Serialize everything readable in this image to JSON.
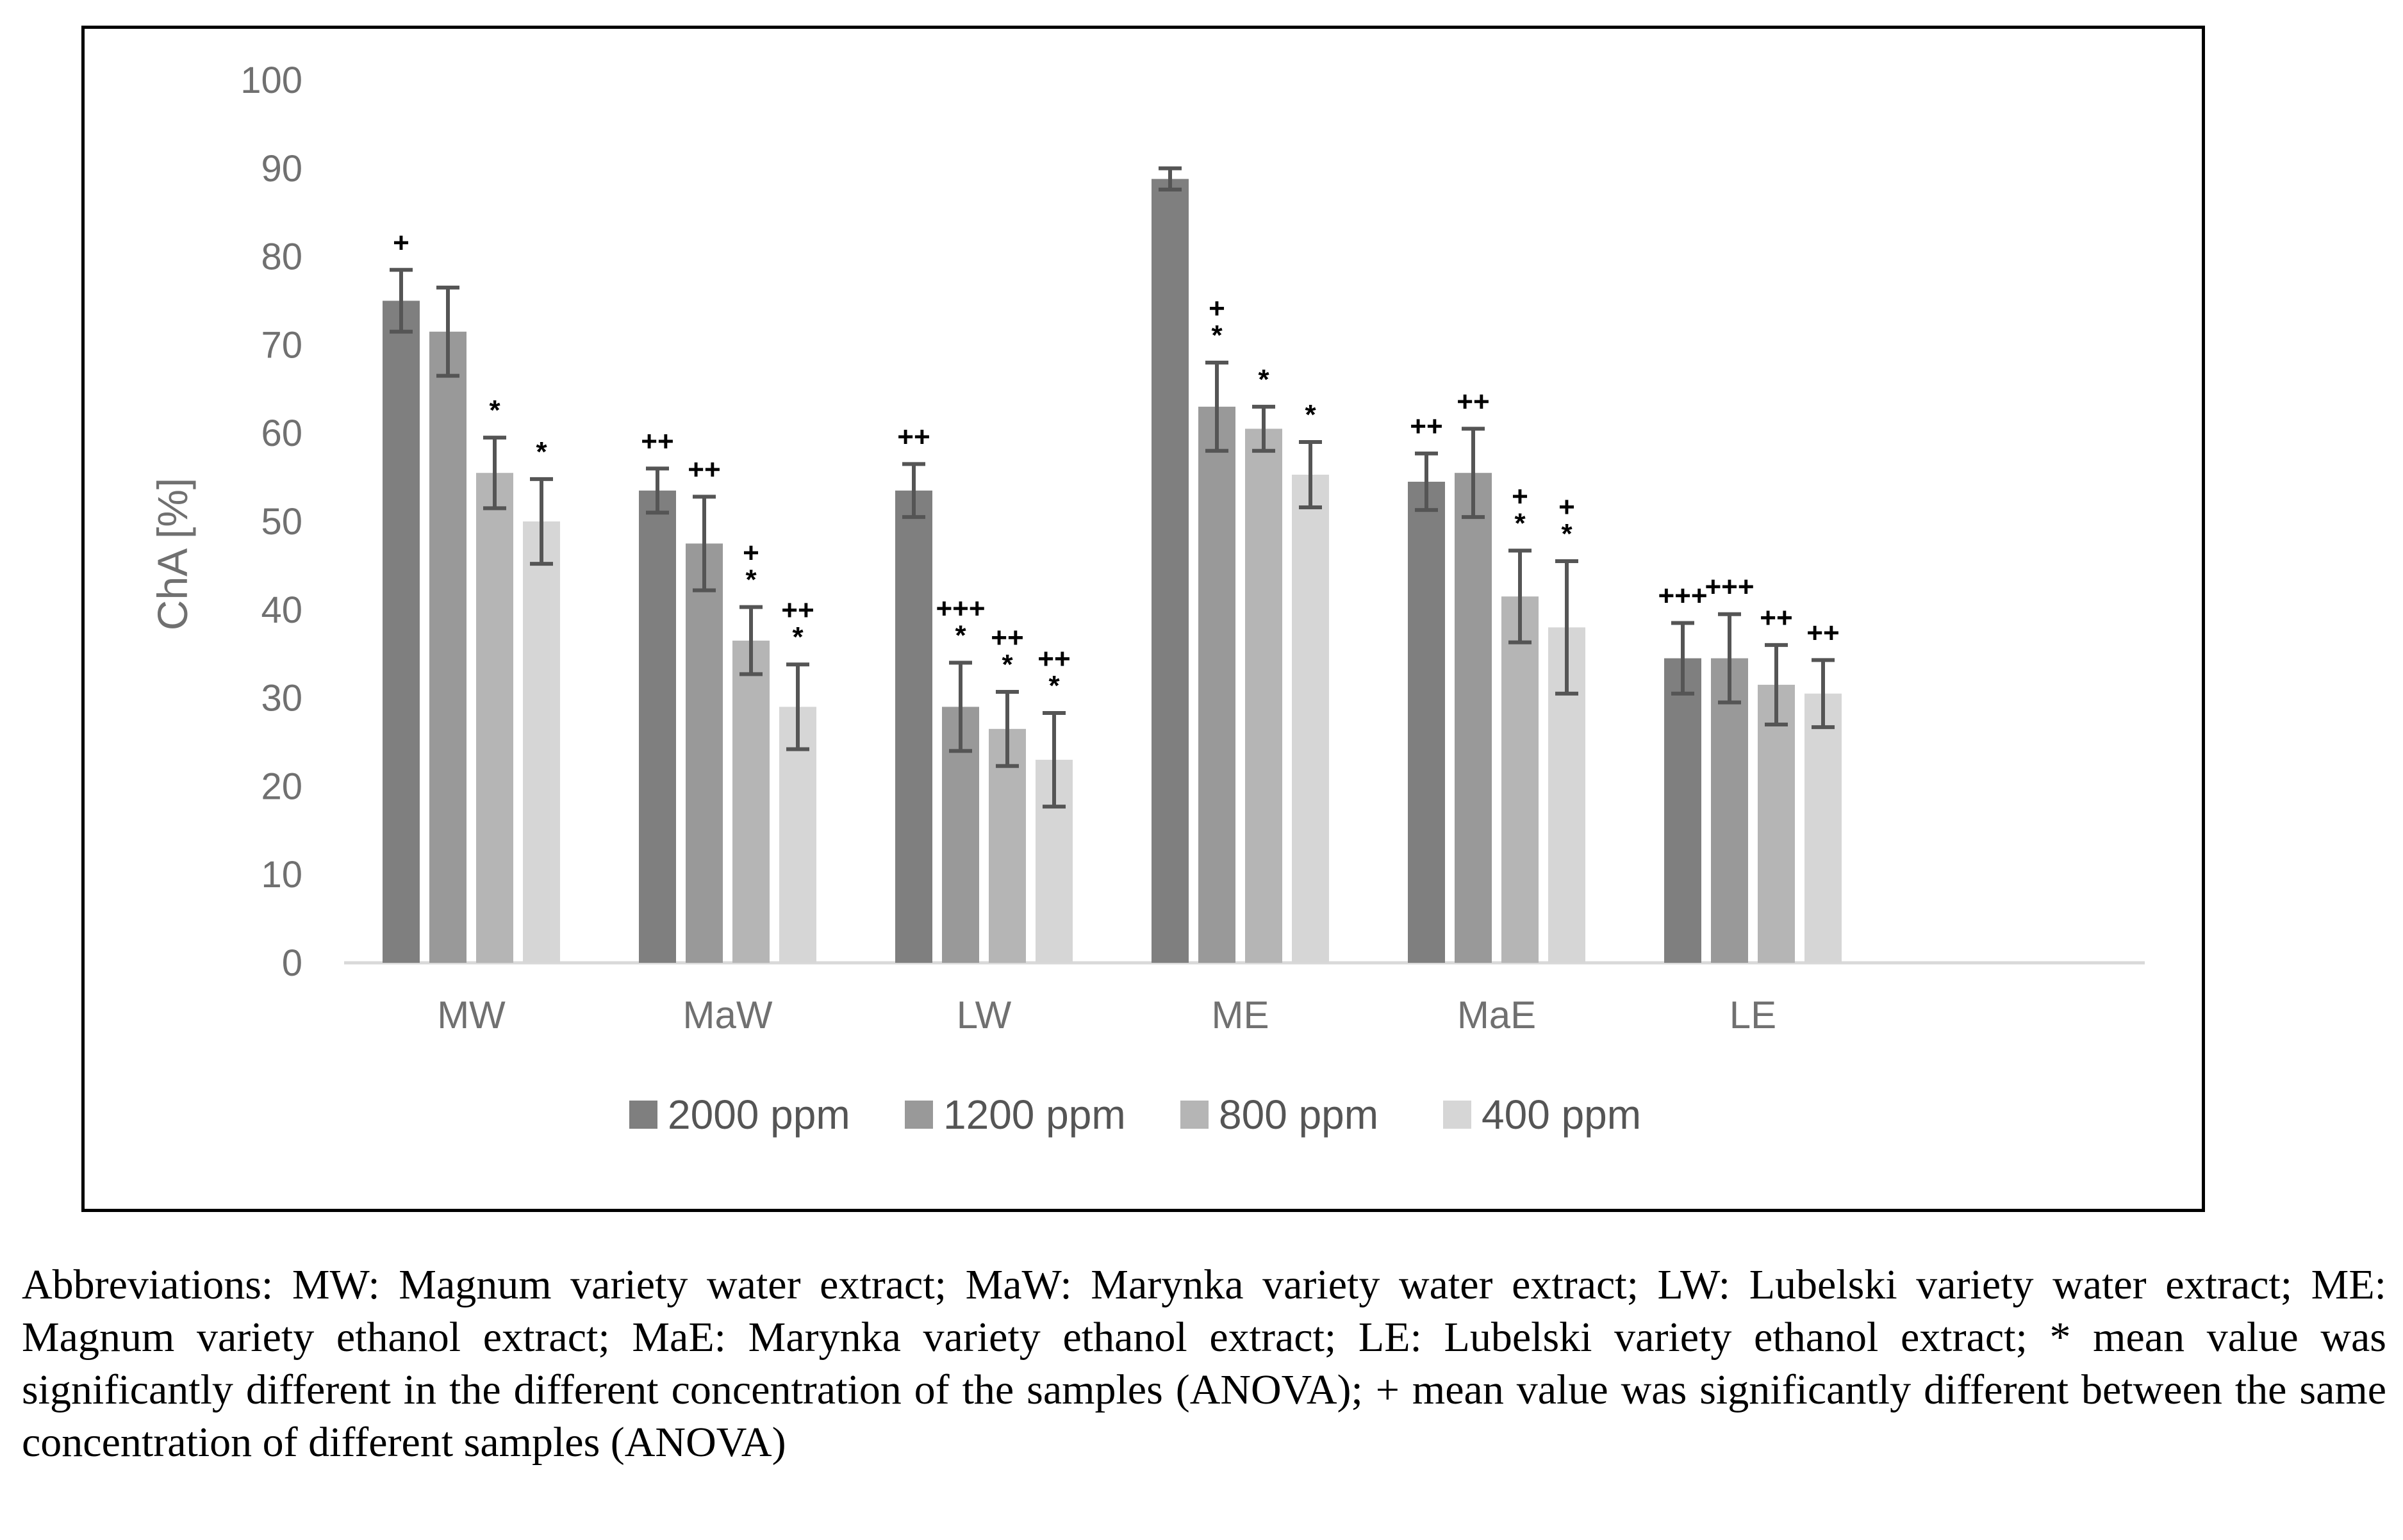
{
  "chart_data": {
    "type": "bar",
    "ylabel": "ChA [%]",
    "ylim": [
      0,
      100
    ],
    "yticks": [
      0,
      10,
      20,
      30,
      40,
      50,
      60,
      70,
      80,
      90,
      100
    ],
    "categories": [
      "MW",
      "MaW",
      "LW",
      "ME",
      "MaE",
      "LE"
    ],
    "series": [
      {
        "name": "2000 ppm",
        "color": "#7f7f7f",
        "values": [
          75,
          53.5,
          53.5,
          88.8,
          54.5,
          34.5
        ],
        "errors": [
          3.5,
          2.5,
          3,
          1.2,
          3.2,
          4
        ],
        "annotations": [
          [
            "+"
          ],
          [
            "++"
          ],
          [
            "++"
          ],
          [],
          [
            "++"
          ],
          [
            "+++"
          ]
        ]
      },
      {
        "name": "1200 ppm",
        "color": "#999999",
        "values": [
          71.5,
          47.5,
          29,
          63,
          55.5,
          34.5
        ],
        "errors": [
          5,
          5.3,
          5,
          5,
          5,
          5
        ],
        "annotations": [
          [],
          [
            "++"
          ],
          [
            "*",
            "+++"
          ],
          [
            "*",
            "+"
          ],
          [
            "++"
          ],
          [
            "+++"
          ]
        ]
      },
      {
        "name": "800 ppm",
        "color": "#b5b5b5",
        "values": [
          55.5,
          36.5,
          26.5,
          60.5,
          41.5,
          31.5
        ],
        "errors": [
          4,
          3.8,
          4.2,
          2.5,
          5.2,
          4.5
        ],
        "annotations": [
          [
            "*"
          ],
          [
            "*",
            "+"
          ],
          [
            "*",
            "++"
          ],
          [
            "*"
          ],
          [
            "*",
            "+"
          ],
          [
            "++"
          ]
        ]
      },
      {
        "name": "400 ppm",
        "color": "#d6d6d6",
        "values": [
          50,
          29,
          23,
          55.3,
          38,
          30.5
        ],
        "errors": [
          4.8,
          4.8,
          5.3,
          3.7,
          7.5,
          3.8
        ],
        "annotations": [
          [
            "*"
          ],
          [
            "*",
            "++"
          ],
          [
            "*",
            "++"
          ],
          [
            "*"
          ],
          [
            "*",
            "+"
          ],
          [
            "++"
          ]
        ]
      }
    ],
    "legend_position": "bottom"
  },
  "caption": {
    "text": "Abbreviations: MW: Magnum variety water extract; MaW: Marynka variety water extract; LW: Lubelski variety water extract; ME: Magnum variety ethanol extract; MaE: Marynka variety ethanol extract; LE: Lubelski variety ethanol extract; * mean value was significantly different in the different concentration of the samples (ANOVA); + mean value was significantly different between the same concentration of different samples (ANOVA)"
  }
}
